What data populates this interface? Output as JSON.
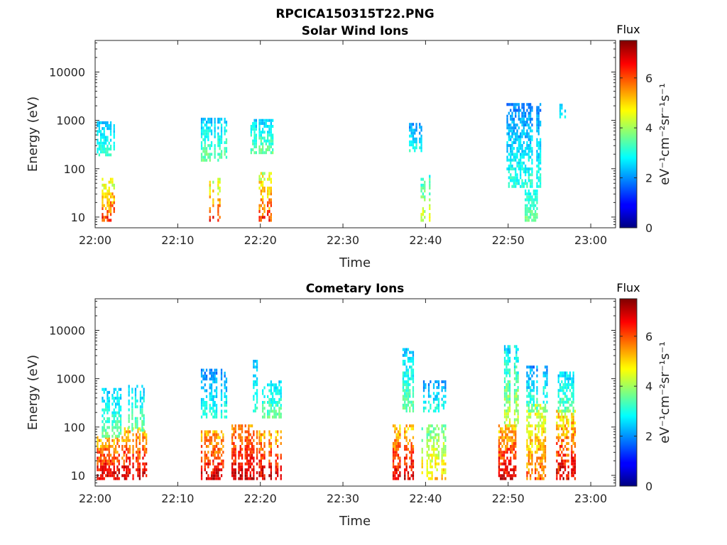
{
  "figure": {
    "title": "RPCICA150315T22.PNG"
  },
  "chart_data": [
    {
      "type": "heatmap",
      "title": "Solar Wind Ions",
      "xlabel": "Time",
      "ylabel": "Energy (eV)",
      "x_ticks": [
        "22:00",
        "22:10",
        "22:20",
        "22:30",
        "22:40",
        "22:50",
        "23:00"
      ],
      "x_range_minutes": [
        0,
        63
      ],
      "y_scale": "log",
      "y_ticks": [
        10,
        100,
        1000,
        10000
      ],
      "y_tick_labels": [
        "10",
        "100",
        "1000",
        "10000"
      ],
      "y_range": [
        6,
        45000
      ],
      "colorbar": {
        "title": "Flux",
        "label": "eV⁻¹cm⁻²sr⁻¹s⁻¹",
        "ticks": [
          "0",
          "2",
          "4",
          "6"
        ],
        "range": [
          0,
          7.5
        ],
        "colormap": "jet"
      },
      "bursts": [
        {
          "t": [
            0.2,
            2.2
          ],
          "e": [
            180,
            950
          ],
          "flux": [
            2,
            3.5
          ]
        },
        {
          "t": [
            0.8,
            2.4
          ],
          "e": [
            8,
            60
          ],
          "flux": [
            3.5,
            7
          ]
        },
        {
          "t": [
            12.8,
            15.8
          ],
          "e": [
            140,
            1000
          ],
          "flux": [
            2,
            4
          ]
        },
        {
          "t": [
            13.8,
            15.3
          ],
          "e": [
            8,
            60
          ],
          "flux": [
            3.5,
            7
          ]
        },
        {
          "t": [
            18.8,
            21.5
          ],
          "e": [
            200,
            1000
          ],
          "flux": [
            2,
            4
          ]
        },
        {
          "t": [
            19.8,
            21.3
          ],
          "e": [
            8,
            80
          ],
          "flux": [
            3.5,
            7
          ]
        },
        {
          "t": [
            38.0,
            39.5
          ],
          "e": [
            220,
            800
          ],
          "flux": [
            1.5,
            3.5
          ]
        },
        {
          "t": [
            39.4,
            40.6
          ],
          "e": [
            8,
            70
          ],
          "flux": [
            2.5,
            5
          ]
        },
        {
          "t": [
            49.8,
            54.0
          ],
          "e": [
            40,
            2000
          ],
          "flux": [
            1.5,
            3.5
          ]
        },
        {
          "t": [
            52.0,
            53.5
          ],
          "e": [
            8,
            35
          ],
          "flux": [
            2.5,
            4
          ]
        },
        {
          "t": [
            56.2,
            56.9
          ],
          "e": [
            1100,
            2100
          ],
          "flux": [
            2,
            3
          ]
        }
      ]
    },
    {
      "type": "heatmap",
      "title": "Cometary Ions",
      "xlabel": "Time",
      "ylabel": "Energy (eV)",
      "x_ticks": [
        "22:00",
        "22:10",
        "22:20",
        "22:30",
        "22:40",
        "22:50",
        "23:00"
      ],
      "x_range_minutes": [
        0,
        63
      ],
      "y_scale": "log",
      "y_ticks": [
        10,
        100,
        1000,
        10000
      ],
      "y_tick_labels": [
        "10",
        "100",
        "1000",
        "10000"
      ],
      "y_range": [
        6,
        45000
      ],
      "colorbar": {
        "title": "Flux",
        "label": "eV⁻¹cm⁻²sr⁻¹s⁻¹",
        "ticks": [
          "0",
          "2",
          "4",
          "6"
        ],
        "range": [
          0,
          7.5
        ],
        "colormap": "jet"
      },
      "bursts": [
        {
          "t": [
            0.2,
            3.5
          ],
          "e": [
            8,
            60
          ],
          "flux": [
            4.5,
            7.5
          ]
        },
        {
          "t": [
            0.8,
            3.2
          ],
          "e": [
            60,
            600
          ],
          "flux": [
            2,
            4
          ]
        },
        {
          "t": [
            3.5,
            6.3
          ],
          "e": [
            8,
            90
          ],
          "flux": [
            4.5,
            7.5
          ]
        },
        {
          "t": [
            4.0,
            6.0
          ],
          "e": [
            80,
            700
          ],
          "flux": [
            2,
            4
          ]
        },
        {
          "t": [
            12.8,
            15.5
          ],
          "e": [
            8,
            80
          ],
          "flux": [
            4.5,
            7.5
          ]
        },
        {
          "t": [
            12.8,
            16.0
          ],
          "e": [
            150,
            1400
          ],
          "flux": [
            1.5,
            3.5
          ]
        },
        {
          "t": [
            16.5,
            19.5
          ],
          "e": [
            8,
            100
          ],
          "flux": [
            5,
            7.5
          ]
        },
        {
          "t": [
            18.5,
            19.5
          ],
          "e": [
            200,
            2400
          ],
          "flux": [
            2,
            3.5
          ]
        },
        {
          "t": [
            19.8,
            22.5
          ],
          "e": [
            8,
            80
          ],
          "flux": [
            4.5,
            7.5
          ]
        },
        {
          "t": [
            20.0,
            22.5
          ],
          "e": [
            150,
            900
          ],
          "flux": [
            2,
            4
          ]
        },
        {
          "t": [
            36.0,
            38.5
          ],
          "e": [
            8,
            100
          ],
          "flux": [
            4.5,
            7.5
          ]
        },
        {
          "t": [
            37.0,
            38.5
          ],
          "e": [
            200,
            4000
          ],
          "flux": [
            2,
            4
          ]
        },
        {
          "t": [
            39.5,
            42.5
          ],
          "e": [
            8,
            100
          ],
          "flux": [
            3,
            5.5
          ]
        },
        {
          "t": [
            39.5,
            42.5
          ],
          "e": [
            200,
            900
          ],
          "flux": [
            1.5,
            3.5
          ]
        },
        {
          "t": [
            48.8,
            51.0
          ],
          "e": [
            8,
            100
          ],
          "flux": [
            4.5,
            7.5
          ]
        },
        {
          "t": [
            49.5,
            51.5
          ],
          "e": [
            100,
            4500
          ],
          "flux": [
            2,
            5
          ]
        },
        {
          "t": [
            52.2,
            54.5
          ],
          "e": [
            8,
            300
          ],
          "flux": [
            3.5,
            6.5
          ]
        },
        {
          "t": [
            52.2,
            54.8
          ],
          "e": [
            200,
            1700
          ],
          "flux": [
            1.5,
            4
          ]
        },
        {
          "t": [
            55.8,
            58.2
          ],
          "e": [
            8,
            200
          ],
          "flux": [
            4,
            7.5
          ]
        },
        {
          "t": [
            56.0,
            58.0
          ],
          "e": [
            200,
            1400
          ],
          "flux": [
            2,
            4
          ]
        }
      ]
    }
  ]
}
